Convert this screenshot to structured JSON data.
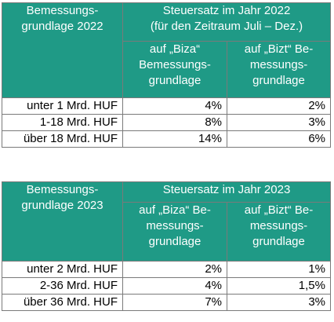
{
  "table2022": {
    "col1_header": "Bemessungs-\ngrundlage 2022",
    "main_header": "Steuersatz im Jahr 2022\n(für den Zeitraum Juli – Dez.)",
    "sub_headers": [
      "auf „Biza“\nBemessungs-\ngrundlage",
      "auf „Bizt“ Be-\nmessungs-\ngrundlage"
    ],
    "rows": [
      {
        "label": "unter 1 Mrd. HUF",
        "biza": "4%",
        "bizt": "2%"
      },
      {
        "label": "1-18 Mrd. HUF",
        "biza": "8%",
        "bizt": "3%"
      },
      {
        "label": "über 18 Mrd. HUF",
        "biza": "14%",
        "bizt": "6%"
      }
    ]
  },
  "table2023": {
    "col1_header": "Bemessungs-\ngrundlage 2023",
    "main_header": "Steuersatz im Jahr 2023",
    "sub_headers": [
      "auf „Biza“ Be-\nmessungs-\ngrundlage",
      "auf „Bizt“ Be-\nmessungs-\ngrundlage"
    ],
    "rows": [
      {
        "label": "unter 2 Mrd. HUF",
        "biza": "2%",
        "bizt": "1%"
      },
      {
        "label": "2-36 Mrd. HUF",
        "biza": "4%",
        "bizt": "1,5%"
      },
      {
        "label": "über 36 Mrd. HUF",
        "biza": "7%",
        "bizt": "3%"
      }
    ]
  }
}
